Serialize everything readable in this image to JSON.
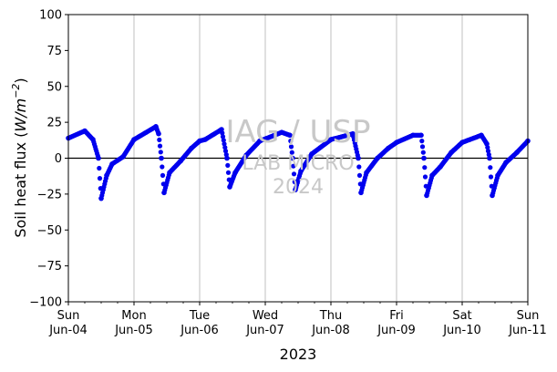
{
  "chart_data": {
    "type": "scatter",
    "title": "",
    "xlabel": "2023",
    "ylabel_prefix": "Soil heat flux (",
    "ylabel_unit_base": "W/m",
    "ylabel_unit_sup": "−2",
    "ylabel_suffix": ")",
    "ylim": [
      -100,
      100
    ],
    "yticks": [
      -100,
      -75,
      -50,
      -25,
      0,
      25,
      50,
      75,
      100
    ],
    "ytick_labels": [
      "−100",
      "−75",
      "−50",
      "−25",
      "0",
      "25",
      "50",
      "75",
      "100"
    ],
    "xlim": [
      "2023-06-04",
      "2023-06-11"
    ],
    "xticks": [
      {
        "day": "Sun",
        "date": "Jun-04"
      },
      {
        "day": "Mon",
        "date": "Jun-05"
      },
      {
        "day": "Tue",
        "date": "Jun-06"
      },
      {
        "day": "Wed",
        "date": "Jun-07"
      },
      {
        "day": "Thu",
        "date": "Jun-08"
      },
      {
        "day": "Fri",
        "date": "Jun-09"
      },
      {
        "day": "Sat",
        "date": "Jun-10"
      },
      {
        "day": "Sun",
        "date": "Jun-11"
      }
    ],
    "grid": "vertical",
    "zero_line": true,
    "series_color": "#0000ee",
    "series": [
      {
        "values": [
          [
            "2023-06-04 00:00",
            14
          ],
          [
            "2023-06-04 06:00",
            19
          ],
          [
            "2023-06-04 09:00",
            13
          ],
          [
            "2023-06-04 11:00",
            0
          ],
          [
            "2023-06-04 12:00",
            -28
          ],
          [
            "2023-06-04 14:00",
            -12
          ],
          [
            "2023-06-04 16:00",
            -4
          ],
          [
            "2023-06-04 20:00",
            1
          ],
          [
            "2023-06-05 00:00",
            13
          ],
          [
            "2023-06-05 08:00",
            22
          ],
          [
            "2023-06-05 09:00",
            17
          ],
          [
            "2023-06-05 10:00",
            0
          ],
          [
            "2023-06-05 11:00",
            -24
          ],
          [
            "2023-06-05 13:00",
            -10
          ],
          [
            "2023-06-05 17:00",
            -2
          ],
          [
            "2023-06-05 21:00",
            7
          ],
          [
            "2023-06-06 00:00",
            12
          ],
          [
            "2023-06-06 02:00",
            13
          ],
          [
            "2023-06-06 08:00",
            20
          ],
          [
            "2023-06-06 10:00",
            0
          ],
          [
            "2023-06-06 11:00",
            -20
          ],
          [
            "2023-06-06 13:00",
            -10
          ],
          [
            "2023-06-06 17:00",
            2
          ],
          [
            "2023-06-06 22:00",
            12
          ],
          [
            "2023-06-07 06:00",
            18
          ],
          [
            "2023-06-07 09:00",
            16
          ],
          [
            "2023-06-07 10:00",
            0
          ],
          [
            "2023-06-07 11:00",
            -22
          ],
          [
            "2023-06-07 13:00",
            -9
          ],
          [
            "2023-06-07 17:00",
            3
          ],
          [
            "2023-06-08 00:00",
            13
          ],
          [
            "2023-06-08 08:00",
            17
          ],
          [
            "2023-06-08 10:00",
            0
          ],
          [
            "2023-06-08 11:00",
            -24
          ],
          [
            "2023-06-08 13:00",
            -10
          ],
          [
            "2023-06-08 17:00",
            0
          ],
          [
            "2023-06-08 21:00",
            7
          ],
          [
            "2023-06-09 00:00",
            11
          ],
          [
            "2023-06-09 06:00",
            16
          ],
          [
            "2023-06-09 09:00",
            16
          ],
          [
            "2023-06-09 10:00",
            0
          ],
          [
            "2023-06-09 11:00",
            -26
          ],
          [
            "2023-06-09 13:00",
            -12
          ],
          [
            "2023-06-09 16:00",
            -6
          ],
          [
            "2023-06-09 20:00",
            4
          ],
          [
            "2023-06-10 00:00",
            11
          ],
          [
            "2023-06-10 07:00",
            16
          ],
          [
            "2023-06-10 09:00",
            10
          ],
          [
            "2023-06-10 10:00",
            0
          ],
          [
            "2023-06-10 11:00",
            -26
          ],
          [
            "2023-06-10 13:00",
            -12
          ],
          [
            "2023-06-10 16:00",
            -3
          ],
          [
            "2023-06-10 20:00",
            4
          ],
          [
            "2023-06-11 00:00",
            12
          ]
        ]
      }
    ]
  },
  "watermark": {
    "line1": "IAG / USP",
    "line2": "LAB MICRO",
    "line3": "2024"
  }
}
